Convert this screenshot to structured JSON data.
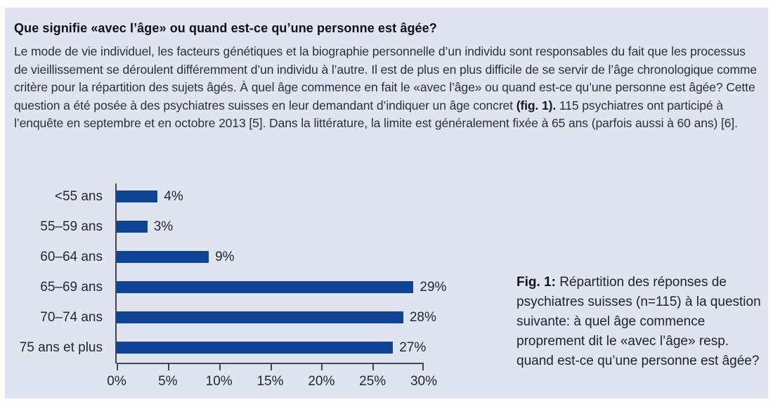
{
  "panel": {
    "heading": "Que signifie «avec l’âge» ou quand est-ce qu’une personne est âgée?",
    "paragraph_before_fig": "Le mode de vie individuel, les facteurs génétiques et la biographie personnelle d’un individu sont responsables du fait que les processus de vieillissement se déroulent différemment d’un individu à l’autre. Il est de plus en plus difficile de se servir de l’âge chronologique comme critère pour la répartition des sujets âgés. À quel âge commence en fait le «avec l’âge» ou quand est-ce qu’une personne est âgée? Cette question a été posée à des psychiatres suisses en leur demandant d’indiquer un âge concret ",
    "fig_ref": "(fig. 1).",
    "paragraph_after_fig": " 115 psychiatres ont participé à l’enquête en septembre et en octobre 2013 [5]. Dans la littérature, la limite est généralement fixée à 65 ans (parfois aussi à 60 ans) [6]."
  },
  "chart_data": {
    "type": "bar",
    "orientation": "horizontal",
    "categories": [
      "<55 ans",
      "55–59 ans",
      "60–64 ans",
      "65–69 ans",
      "70–74 ans",
      "75 ans et plus"
    ],
    "values": [
      4,
      3,
      9,
      29,
      28,
      27
    ],
    "value_labels": [
      "4%",
      "3%",
      "9%",
      "29%",
      "28%",
      "27%"
    ],
    "x_ticks": [
      0,
      5,
      10,
      15,
      20,
      25,
      30
    ],
    "x_tick_labels": [
      "0%",
      "5%",
      "10%",
      "15%",
      "20%",
      "25%",
      "30%"
    ],
    "xlim": [
      0,
      30
    ],
    "grid": false,
    "legend": false,
    "title": "",
    "xlabel": "",
    "ylabel": "",
    "bar_color": "#0d4496",
    "axis_color": "#45454e"
  },
  "caption": {
    "label": "Fig. 1:",
    "text": " Répartition des réponses de psychiatres suisses (n=115) à la question suivante: à quel âge commence proprement dit le «avec l’âge» resp. quand est-ce qu’une personne est âgée?"
  },
  "colors": {
    "panel_bg": "#e0e3f0",
    "page_bg": "#fffefb",
    "bar": "#0d4496"
  }
}
